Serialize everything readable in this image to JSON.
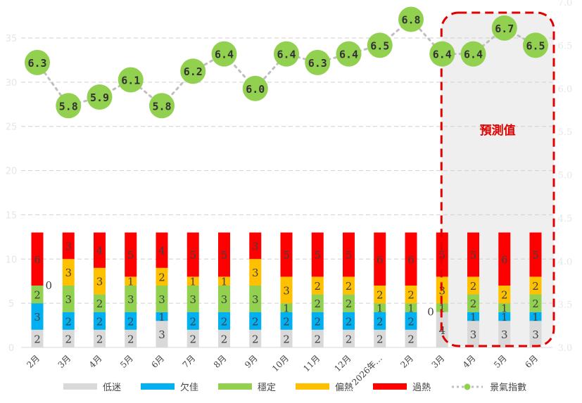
{
  "chart_data": {
    "type": "bar+line",
    "categories": [
      "2月",
      "3月",
      "4月",
      "5月",
      "6月",
      "7月",
      "8月",
      "9月",
      "10月",
      "11月",
      "12月",
      "2026年…",
      "2月",
      "3月",
      "4月",
      "5月",
      "6月"
    ],
    "series": [
      {
        "name": "低迷",
        "color": "#d9d9d9",
        "values": [
          2,
          2,
          2,
          2,
          3,
          2,
          2,
          2,
          2,
          2,
          2,
          2,
          2,
          4,
          3,
          3,
          3
        ]
      },
      {
        "name": "欠佳",
        "color": "#00b0f0",
        "values": [
          3,
          2,
          2,
          2,
          1,
          2,
          2,
          2,
          2,
          2,
          2,
          2,
          2,
          0,
          1,
          1,
          1
        ]
      },
      {
        "name": "穩定",
        "color": "#92d050",
        "values": [
          2,
          3,
          2,
          3,
          3,
          3,
          3,
          3,
          1,
          2,
          2,
          1,
          1,
          1,
          2,
          1,
          2
        ]
      },
      {
        "name": "偏熱",
        "color": "#ffc000",
        "values": [
          0,
          3,
          3,
          1,
          2,
          1,
          1,
          3,
          3,
          2,
          2,
          2,
          2,
          3,
          2,
          2,
          2
        ]
      },
      {
        "name": "過熱",
        "color": "#ff0000",
        "values": [
          6,
          3,
          4,
          5,
          4,
          5,
          5,
          3,
          5,
          5,
          5,
          6,
          6,
          5,
          5,
          6,
          5
        ]
      }
    ],
    "line": {
      "name": "景氣指數",
      "color": "#92d050",
      "axis": "right",
      "values": [
        6.3,
        5.8,
        5.9,
        6.1,
        5.8,
        6.2,
        6.4,
        6.0,
        6.4,
        6.3,
        6.4,
        6.5,
        6.8,
        6.4,
        6.4,
        6.7,
        6.5
      ]
    },
    "left_axis": {
      "ylim": [
        0,
        35
      ],
      "ticks": [
        "0",
        "5",
        "10",
        "15",
        "20",
        "25",
        "30",
        "35"
      ]
    },
    "right_axis": {
      "ylim": [
        3.0,
        7.0
      ],
      "ticks": [
        "3.0",
        "3.5",
        "4.0",
        "4.5",
        "5.0",
        "5.5",
        "6.0",
        "6.5",
        "7.0"
      ]
    },
    "grid": true,
    "forecast_annotation": {
      "label": "預測值",
      "start_index": 13,
      "end_index": 16,
      "color": "#e00000"
    },
    "legend_position": "bottom"
  }
}
